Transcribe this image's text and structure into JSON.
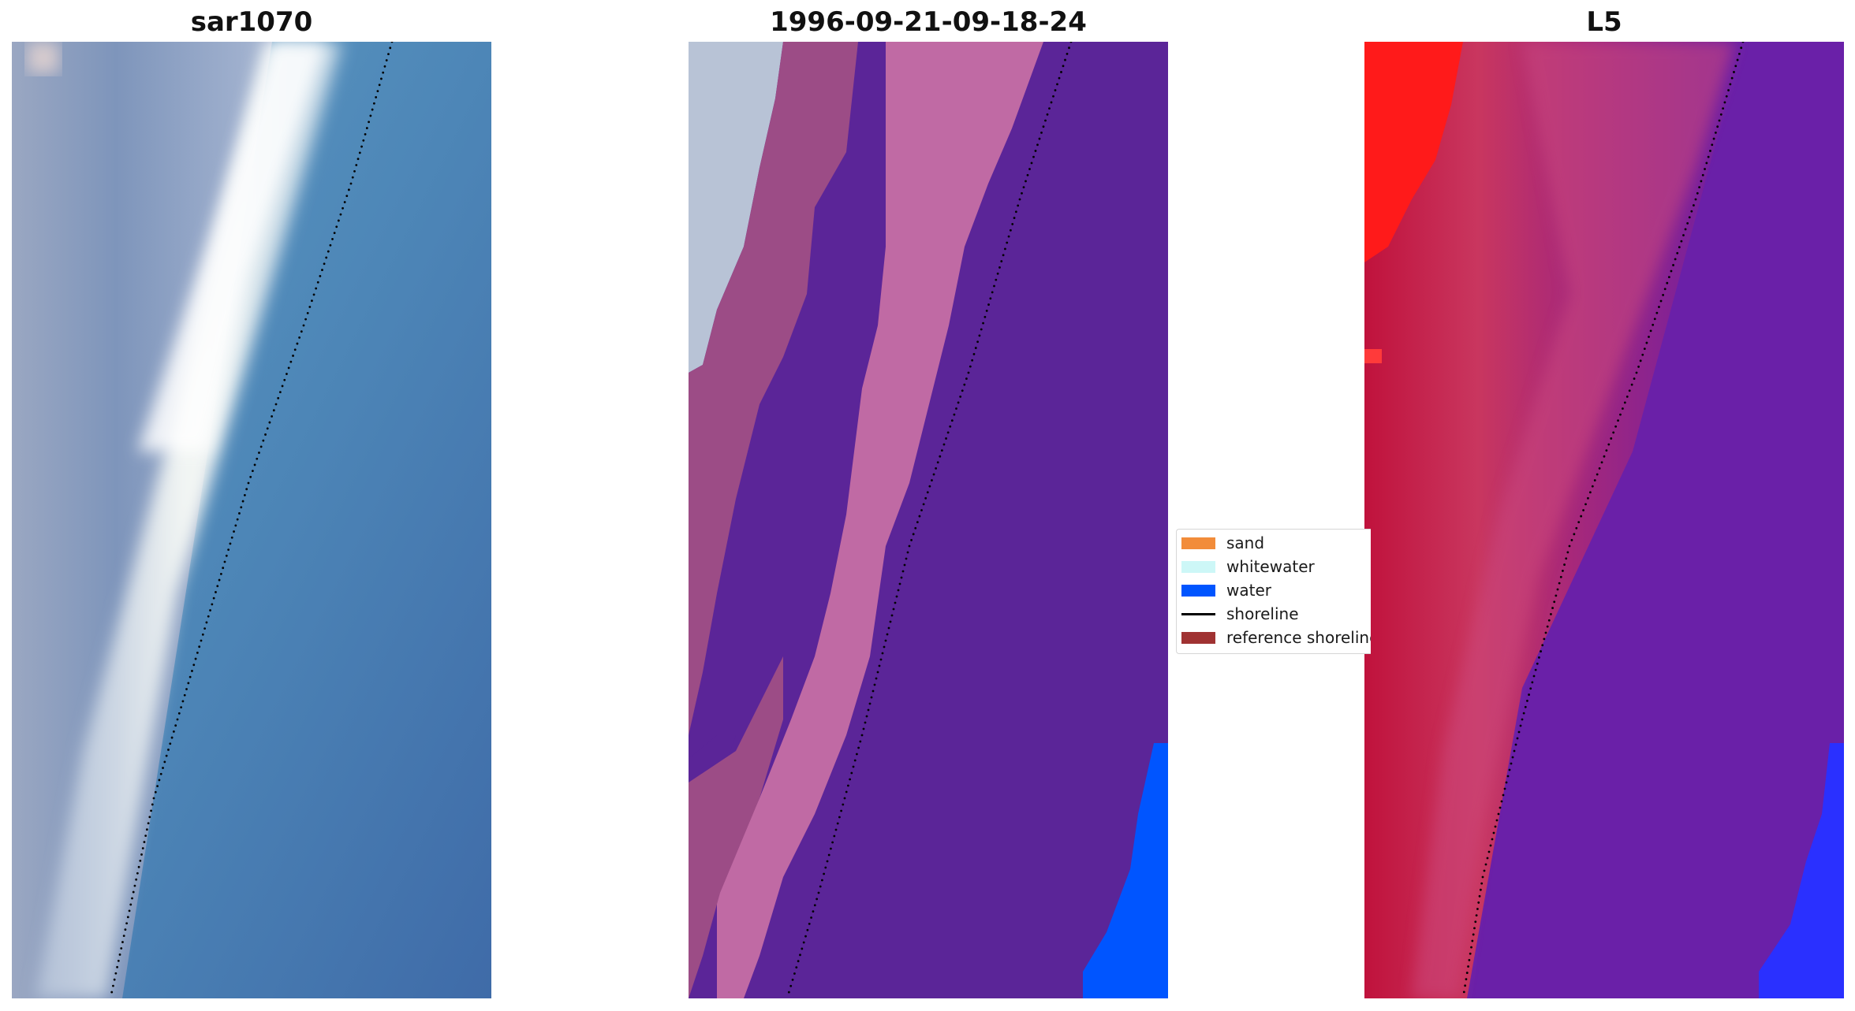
{
  "panels": {
    "left": {
      "title": "sar1070"
    },
    "middle": {
      "title": "1996-09-21-09-18-24"
    },
    "right": {
      "title": "L5"
    }
  },
  "legend": {
    "items": [
      {
        "label": "sand",
        "kind": "patch",
        "color": "#f28c3a"
      },
      {
        "label": "whitewater",
        "kind": "patch",
        "color": "#cdf7f7"
      },
      {
        "label": "water",
        "kind": "patch",
        "color": "#0055ff"
      },
      {
        "label": "shoreline",
        "kind": "line",
        "color": "#000000"
      },
      {
        "label": "reference shoreline",
        "kind": "patch",
        "color": "#a03232"
      }
    ]
  },
  "colors": {
    "rgb_water": "#4d80b2",
    "rgb_whitewater": "#f2f6f5",
    "rgb_beach": "#93a5c5",
    "class_purple": "#5b2598",
    "class_pink": "#c06aa4",
    "class_mauve": "#9c4c86",
    "class_sand_grey": "#b8c3d6",
    "class_water": "#0055ff",
    "idx_red": "#c41a44",
    "idx_bright_red": "#ff1a1a",
    "idx_purple": "#6a20a8",
    "idx_blue": "#2a30ff",
    "shoreline": "#000000"
  }
}
